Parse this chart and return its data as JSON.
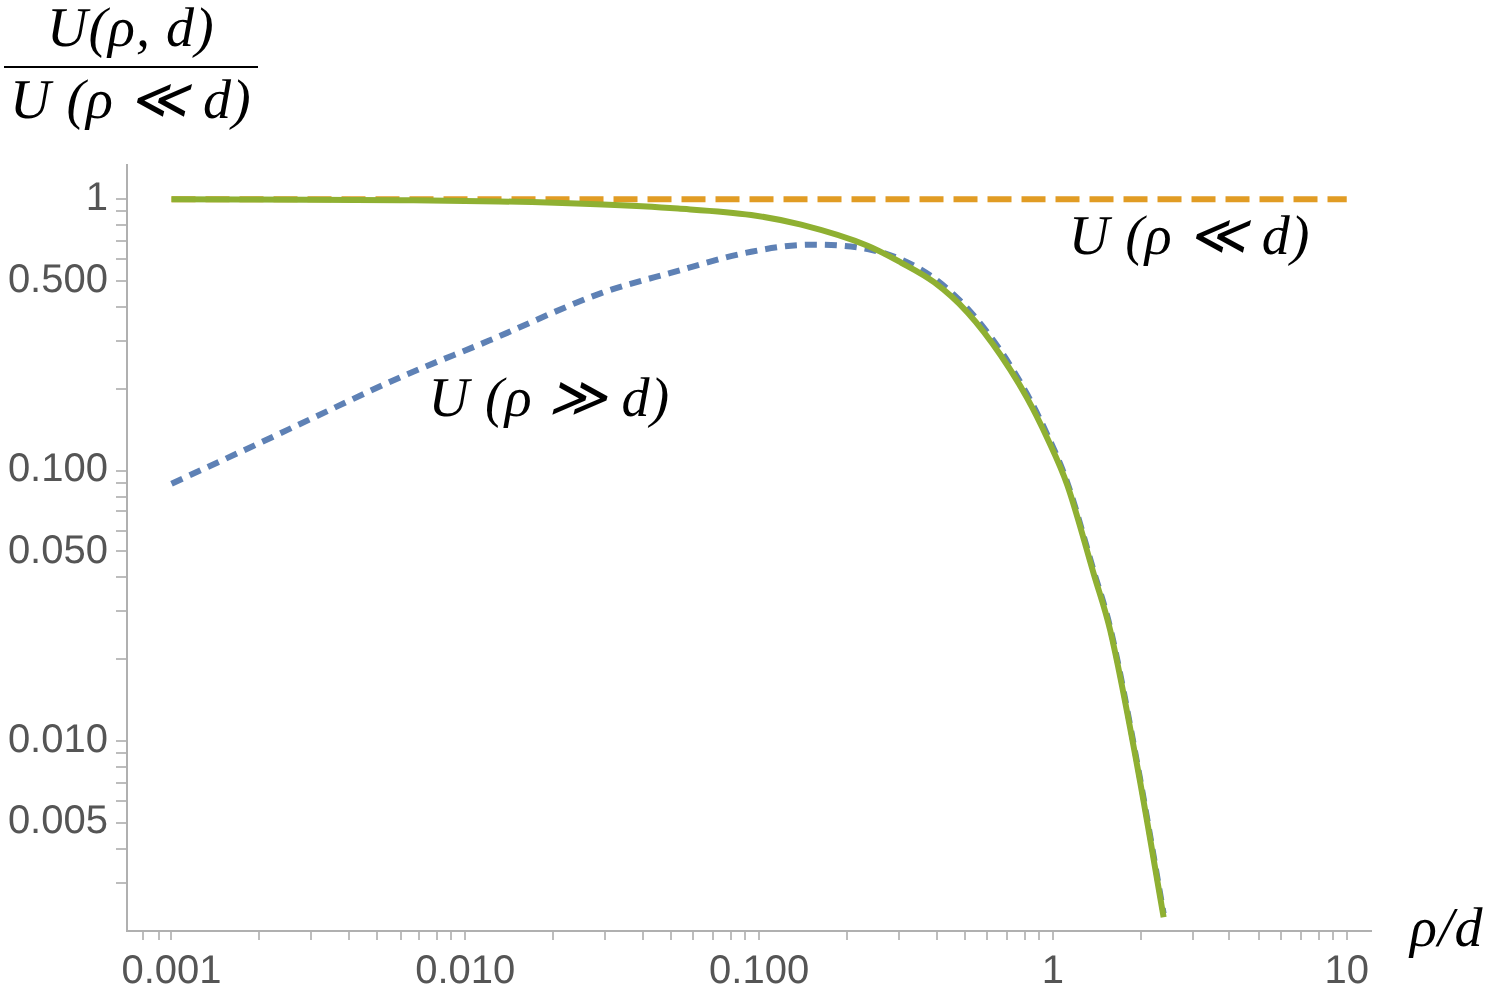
{
  "chart_data": {
    "type": "line",
    "ylabel": "U(ρ, d)\nU (ρ ≪ d)",
    "xlabel": "ρ/d",
    "log": "xy",
    "marker": "none",
    "xlim": [
      0.0007,
      12
    ],
    "ylim": [
      0.002,
      1.35
    ],
    "xticks": [
      {
        "value": 0.0008,
        "label": null
      },
      {
        "value": 0.0009,
        "label": null
      },
      {
        "value": 0.001,
        "label": "0.001"
      },
      {
        "value": 0.002,
        "label": null
      },
      {
        "value": 0.003,
        "label": null
      },
      {
        "value": 0.004,
        "label": null
      },
      {
        "value": 0.005,
        "label": null
      },
      {
        "value": 0.006,
        "label": null
      },
      {
        "value": 0.007,
        "label": null
      },
      {
        "value": 0.008,
        "label": null
      },
      {
        "value": 0.009,
        "label": null
      },
      {
        "value": 0.01,
        "label": "0.010"
      },
      {
        "value": 0.02,
        "label": null
      },
      {
        "value": 0.03,
        "label": null
      },
      {
        "value": 0.04,
        "label": null
      },
      {
        "value": 0.05,
        "label": null
      },
      {
        "value": 0.06,
        "label": null
      },
      {
        "value": 0.07,
        "label": null
      },
      {
        "value": 0.08,
        "label": null
      },
      {
        "value": 0.09,
        "label": null
      },
      {
        "value": 0.1,
        "label": "0.100"
      },
      {
        "value": 0.2,
        "label": null
      },
      {
        "value": 0.3,
        "label": null
      },
      {
        "value": 0.4,
        "label": null
      },
      {
        "value": 0.5,
        "label": null
      },
      {
        "value": 0.6,
        "label": null
      },
      {
        "value": 0.7,
        "label": null
      },
      {
        "value": 0.8,
        "label": null
      },
      {
        "value": 0.9,
        "label": null
      },
      1,
      {
        "value": 2,
        "label": null
      },
      {
        "value": 3,
        "label": null
      },
      {
        "value": 4,
        "label": null
      },
      {
        "value": 5,
        "label": null
      },
      {
        "value": 6,
        "label": null
      },
      {
        "value": 7,
        "label": null
      },
      {
        "value": 8,
        "label": null
      },
      {
        "value": 9,
        "label": null
      },
      10
    ],
    "yticks": [
      {
        "value": 0.003,
        "label": null
      },
      {
        "value": 0.004,
        "label": null
      },
      {
        "value": 0.005,
        "label": "0.005"
      },
      {
        "value": 0.006,
        "label": null
      },
      {
        "value": 0.007,
        "label": null
      },
      {
        "value": 0.008,
        "label": null
      },
      {
        "value": 0.009,
        "label": null
      },
      {
        "value": 0.01,
        "label": "0.010"
      },
      {
        "value": 0.02,
        "label": null
      },
      {
        "value": 0.03,
        "label": null
      },
      {
        "value": 0.04,
        "label": null
      },
      {
        "value": 0.05,
        "label": "0.050"
      },
      {
        "value": 0.06,
        "label": null
      },
      {
        "value": 0.07,
        "label": null
      },
      {
        "value": 0.08,
        "label": null
      },
      {
        "value": 0.09,
        "label": null
      },
      {
        "value": 0.1,
        "label": "0.100"
      },
      {
        "value": 0.2,
        "label": null
      },
      {
        "value": 0.3,
        "label": null
      },
      {
        "value": 0.4,
        "label": null
      },
      {
        "value": 0.5,
        "label": "0.500"
      },
      {
        "value": 0.6,
        "label": null
      },
      {
        "value": 0.7,
        "label": null
      },
      {
        "value": 0.8,
        "label": null
      },
      {
        "value": 0.9,
        "label": null
      },
      1
    ],
    "series": [
      {
        "name": "U (ρ ≫ d)",
        "color": "#5e81b5",
        "line_style": "dotted",
        "x": [
          0.001,
          0.002,
          0.003,
          0.006,
          0.012,
          0.029,
          0.05,
          0.094,
          0.15,
          0.234,
          0.304,
          0.395,
          0.512,
          0.665,
          0.818,
          0.957,
          1.119,
          1.38,
          1.569,
          1.931,
          2.381
        ],
        "values": [
          0.089,
          0.126,
          0.155,
          0.22,
          0.3,
          0.45,
          0.535,
          0.64,
          0.68,
          0.655,
          0.6,
          0.51,
          0.395,
          0.275,
          0.19,
          0.135,
          0.09,
          0.042,
          0.026,
          0.0084,
          0.0023
        ]
      },
      {
        "name": "U (ρ ≪ d)",
        "color": "#e19c24",
        "line_style": "dashed",
        "x": [
          0.001,
          10
        ],
        "values": [
          1,
          1
        ]
      },
      {
        "color": "#8fb032",
        "line_style": "solid",
        "x": [
          0.001,
          0.003,
          0.006,
          0.013,
          0.028,
          0.053,
          0.094,
          0.139,
          0.234,
          0.304,
          0.395,
          0.512,
          0.665,
          0.818,
          0.957,
          1.119,
          1.38,
          1.569,
          1.931,
          2.381
        ],
        "values": [
          1,
          0.996,
          0.992,
          0.982,
          0.958,
          0.924,
          0.875,
          0.806,
          0.674,
          0.584,
          0.493,
          0.382,
          0.265,
          0.184,
          0.131,
          0.088,
          0.041,
          0.0254,
          0.0082,
          0.00223
        ]
      }
    ]
  }
}
